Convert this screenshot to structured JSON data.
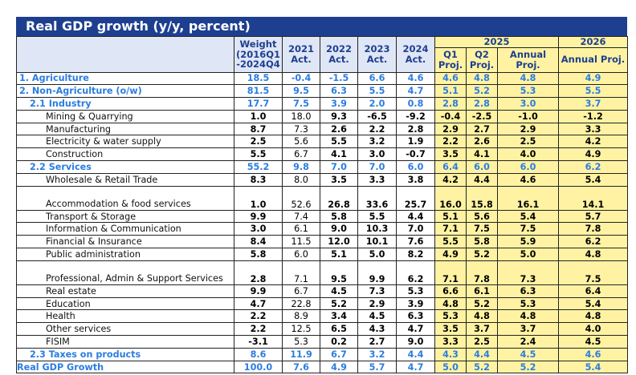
{
  "title": "Real GDP growth (y/y, percent)",
  "header": {
    "weight": "Weight (2016Q1 -2024Q4",
    "y2021": "2021 Act.",
    "y2022": "2022 Act.",
    "y2023": "2023 Act.",
    "y2024": "2024 Act.",
    "y2025": "2025",
    "q1": "Q1 Proj.",
    "q2": "Q2 Proj.",
    "annual25": "Annual Proj.",
    "y2026": "2026",
    "annual26": "Annual Proj."
  },
  "rows": [
    {
      "label": "1. Agriculture",
      "kind": "agg",
      "values": [
        "18.5",
        "-0.4",
        "-1.5",
        "6.6",
        "4.6",
        "4.6",
        "4.8",
        "4.8",
        "4.9"
      ]
    },
    {
      "label": "2. Non-Agriculture (o/w)",
      "kind": "agg",
      "values": [
        "81.5",
        "9.5",
        "6.3",
        "5.5",
        "4.7",
        "5.1",
        "5.2",
        "5.3",
        "5.5"
      ]
    },
    {
      "label": "2.1 Industry",
      "kind": "agg sub",
      "values": [
        "17.7",
        "7.5",
        "3.9",
        "2.0",
        "0.8",
        "2.8",
        "2.8",
        "3.0",
        "3.7"
      ]
    },
    {
      "label": "Mining & Quarrying",
      "kind": "item",
      "values": [
        "1.0",
        "18.0",
        "9.3",
        "-6.5",
        "-9.2",
        "-0.4",
        "-2.5",
        "-1.0",
        "-1.2"
      ]
    },
    {
      "label": "Manufacturing",
      "kind": "item",
      "values": [
        "8.7",
        "7.3",
        "2.6",
        "2.2",
        "2.8",
        "2.9",
        "2.7",
        "2.9",
        "3.3"
      ]
    },
    {
      "label": "Electricity & water supply",
      "kind": "item",
      "values": [
        "2.5",
        "5.6",
        "5.5",
        "3.2",
        "1.9",
        "2.2",
        "2.6",
        "2.5",
        "4.2"
      ]
    },
    {
      "label": "Construction",
      "kind": "item",
      "values": [
        "5.5",
        "6.7",
        "4.1",
        "3.0",
        "-0.7",
        "3.5",
        "4.1",
        "4.0",
        "4.9"
      ]
    },
    {
      "label": "2.2 Services",
      "kind": "agg sub",
      "values": [
        "55.2",
        "9.8",
        "7.0",
        "7.0",
        "6.0",
        "6.4",
        "6.0",
        "6.0",
        "6.2"
      ]
    },
    {
      "label": "Wholesale & Retail Trade",
      "kind": "item",
      "values": [
        "8.3",
        "8.0",
        "3.5",
        "3.3",
        "3.8",
        "4.2",
        "4.4",
        "4.6",
        "5.4"
      ]
    },
    {
      "label": "Accommodation & food services",
      "kind": "item tall",
      "values": [
        "1.0",
        "52.6",
        "26.8",
        "33.6",
        "25.7",
        "16.0",
        "15.8",
        "16.1",
        "14.1"
      ]
    },
    {
      "label": "Transport & Storage",
      "kind": "item",
      "values": [
        "9.9",
        "7.4",
        "5.8",
        "5.5",
        "4.4",
        "5.1",
        "5.6",
        "5.4",
        "5.7"
      ]
    },
    {
      "label": "Information & Communication",
      "kind": "item",
      "values": [
        "3.0",
        "6.1",
        "9.0",
        "10.3",
        "7.0",
        "7.1",
        "7.5",
        "7.5",
        "7.8"
      ]
    },
    {
      "label": "Financial & Insurance",
      "kind": "item",
      "values": [
        "8.4",
        "11.5",
        "12.0",
        "10.1",
        "7.6",
        "5.5",
        "5.8",
        "5.9",
        "6.2"
      ]
    },
    {
      "label": "Public administration",
      "kind": "item",
      "values": [
        "5.8",
        "6.0",
        "5.1",
        "5.0",
        "8.2",
        "4.9",
        "5.2",
        "5.0",
        "4.8"
      ]
    },
    {
      "label": "Professional, Admin & Support Services",
      "kind": "item tall",
      "values": [
        "2.8",
        "7.1",
        "9.5",
        "9.9",
        "6.2",
        "7.1",
        "7.8",
        "7.3",
        "7.5"
      ]
    },
    {
      "label": "Real estate",
      "kind": "item",
      "values": [
        "9.9",
        "6.7",
        "4.5",
        "7.3",
        "5.3",
        "6.6",
        "6.1",
        "6.3",
        "6.4"
      ]
    },
    {
      "label": "Education",
      "kind": "item",
      "values": [
        "4.7",
        "22.8",
        "5.2",
        "2.9",
        "3.9",
        "4.8",
        "5.2",
        "5.3",
        "5.4"
      ]
    },
    {
      "label": "Health",
      "kind": "item",
      "values": [
        "2.2",
        "8.9",
        "3.4",
        "4.5",
        "6.3",
        "5.3",
        "4.8",
        "4.8",
        "4.8"
      ]
    },
    {
      "label": "Other services",
      "kind": "item",
      "values": [
        "2.2",
        "12.5",
        "6.5",
        "4.3",
        "4.7",
        "3.5",
        "3.7",
        "3.7",
        "4.0"
      ]
    },
    {
      "label": "FISIM",
      "kind": "item",
      "values": [
        "-3.1",
        "5.3",
        "0.2",
        "2.7",
        "9.0",
        "3.3",
        "2.5",
        "2.4",
        "4.5"
      ]
    },
    {
      "label": "2.3 Taxes on products",
      "kind": "agg sub",
      "values": [
        "8.6",
        "11.9",
        "6.7",
        "3.2",
        "4.4",
        "4.3",
        "4.4",
        "4.5",
        "4.6"
      ]
    },
    {
      "label": "Real GDP Growth",
      "kind": "agg total",
      "values": [
        "100.0",
        "7.6",
        "4.9",
        "5.7",
        "4.7",
        "5.0",
        "5.2",
        "5.2",
        "5.4"
      ]
    }
  ]
}
